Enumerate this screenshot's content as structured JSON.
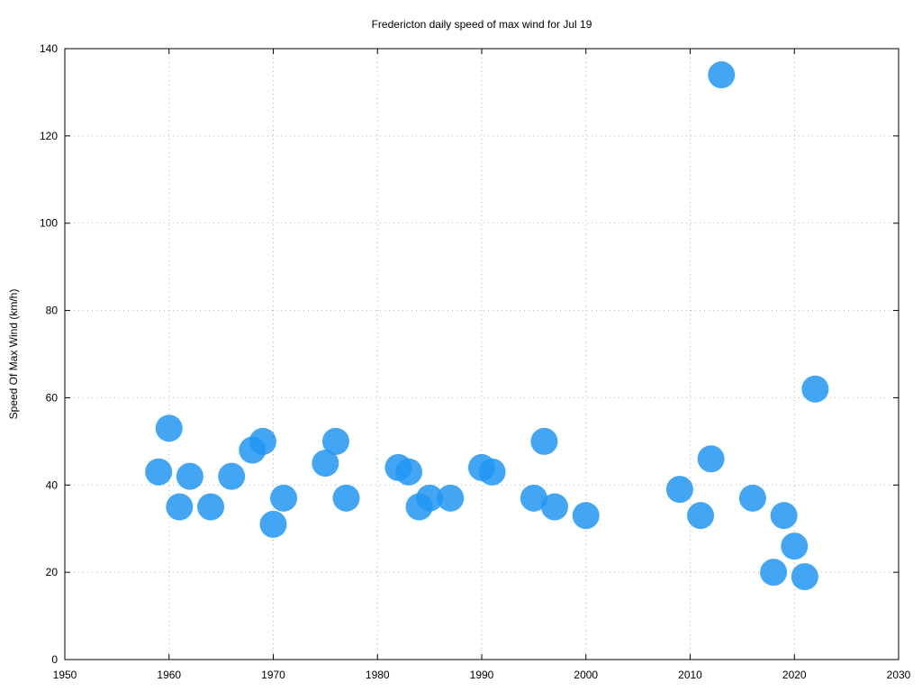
{
  "chart_data": {
    "type": "scatter",
    "title": "Fredericton daily speed of max wind for Jul 19",
    "xlabel": "",
    "ylabel": "Speed Of Max Wind (km/h)",
    "xlim": [
      1950,
      2030
    ],
    "ylim": [
      0,
      140
    ],
    "xticks": [
      1950,
      1960,
      1970,
      1980,
      1990,
      2000,
      2010,
      2020,
      2030
    ],
    "yticks": [
      0,
      20,
      40,
      60,
      80,
      100,
      120,
      140
    ],
    "grid": true,
    "point_color": "#2196f3",
    "points": [
      {
        "x": 1959,
        "y": 43
      },
      {
        "x": 1960,
        "y": 53
      },
      {
        "x": 1961,
        "y": 35
      },
      {
        "x": 1962,
        "y": 42
      },
      {
        "x": 1964,
        "y": 35
      },
      {
        "x": 1966,
        "y": 42
      },
      {
        "x": 1968,
        "y": 48
      },
      {
        "x": 1969,
        "y": 50
      },
      {
        "x": 1970,
        "y": 31
      },
      {
        "x": 1971,
        "y": 37
      },
      {
        "x": 1975,
        "y": 45
      },
      {
        "x": 1976,
        "y": 50
      },
      {
        "x": 1977,
        "y": 37
      },
      {
        "x": 1982,
        "y": 44
      },
      {
        "x": 1983,
        "y": 43
      },
      {
        "x": 1984,
        "y": 35
      },
      {
        "x": 1985,
        "y": 37
      },
      {
        "x": 1987,
        "y": 37
      },
      {
        "x": 1990,
        "y": 44
      },
      {
        "x": 1991,
        "y": 43
      },
      {
        "x": 1995,
        "y": 37
      },
      {
        "x": 1996,
        "y": 50
      },
      {
        "x": 1997,
        "y": 35
      },
      {
        "x": 2000,
        "y": 33
      },
      {
        "x": 2009,
        "y": 39
      },
      {
        "x": 2011,
        "y": 33
      },
      {
        "x": 2012,
        "y": 46
      },
      {
        "x": 2013,
        "y": 134
      },
      {
        "x": 2016,
        "y": 37
      },
      {
        "x": 2018,
        "y": 20
      },
      {
        "x": 2019,
        "y": 33
      },
      {
        "x": 2020,
        "y": 26
      },
      {
        "x": 2021,
        "y": 19
      },
      {
        "x": 2022,
        "y": 62
      }
    ]
  }
}
